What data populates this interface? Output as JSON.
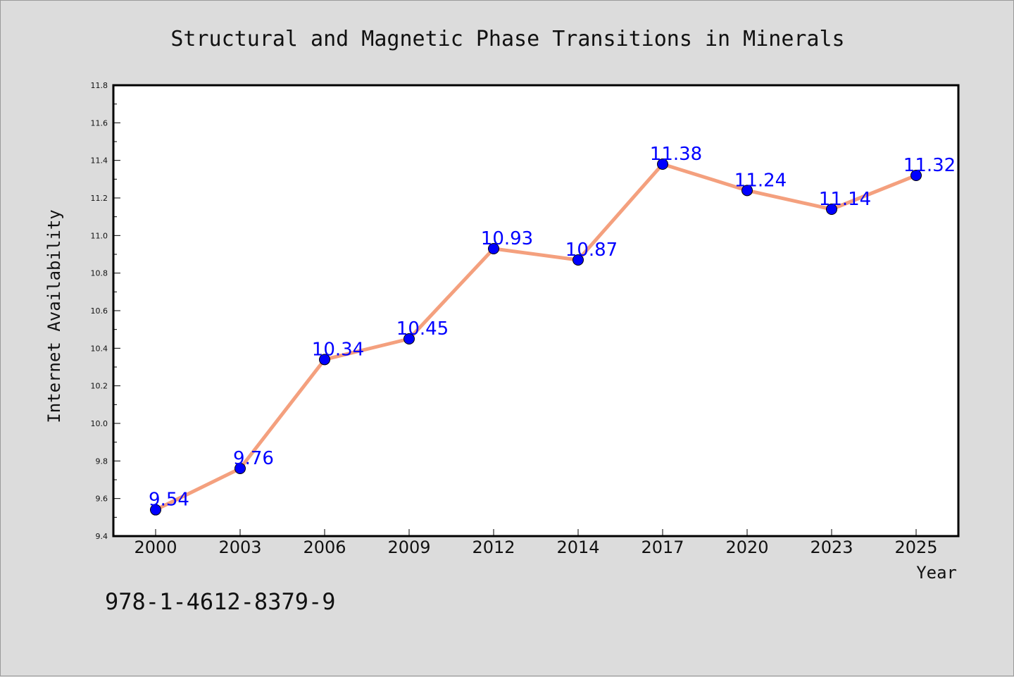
{
  "chart_data": {
    "type": "line",
    "title": "Structural and Magnetic Phase Transitions in Minerals",
    "xlabel": "Year",
    "ylabel": "Internet Availability",
    "categories": [
      "2000",
      "2003",
      "2006",
      "2009",
      "2012",
      "2014",
      "2017",
      "2020",
      "2023",
      "2025"
    ],
    "values": [
      9.54,
      9.76,
      10.34,
      10.45,
      10.93,
      10.87,
      11.38,
      11.24,
      11.14,
      11.32
    ],
    "data_labels": [
      "9.54",
      "9.76",
      "10.34",
      "10.45",
      "10.93",
      "10.87",
      "11.38",
      "11.24",
      "11.14",
      "11.32"
    ],
    "ylim": [
      9.4,
      11.8
    ],
    "yticks": [
      "9.4",
      "9.6",
      "9.8",
      "10.0",
      "10.2",
      "10.4",
      "10.6",
      "10.8",
      "11.0",
      "11.2",
      "11.4",
      "11.6",
      "11.8"
    ],
    "grid": false,
    "line_color": "#f4a07e",
    "marker_color": "#0000ff"
  },
  "footer": {
    "isbn": "978-1-4612-8379-9"
  }
}
